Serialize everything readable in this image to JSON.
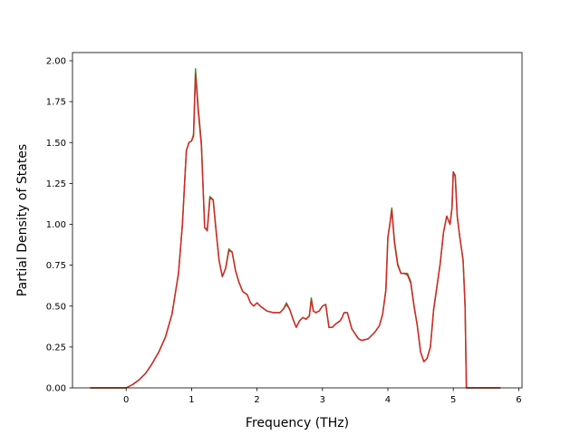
{
  "chart_data": {
    "type": "line",
    "xlabel": "Frequency (THz)",
    "ylabel": "Partial Density of States",
    "xlim": [
      -0.82,
      6.05
    ],
    "ylim": [
      0.0,
      2.05
    ],
    "xticks": [
      "0",
      "1",
      "2",
      "3",
      "4",
      "5",
      "6"
    ],
    "yticks": [
      "0.00",
      "0.25",
      "0.50",
      "0.75",
      "1.00",
      "1.25",
      "1.50",
      "1.75",
      "2.00"
    ],
    "grid": false,
    "series": [
      {
        "color": "#2ca02c",
        "x": [
          -0.55,
          0.0,
          0.1,
          0.2,
          0.3,
          0.4,
          0.5,
          0.6,
          0.7,
          0.8,
          0.86,
          0.92,
          0.96,
          1.0,
          1.03,
          1.06,
          1.1,
          1.15,
          1.2,
          1.24,
          1.28,
          1.33,
          1.37,
          1.42,
          1.47,
          1.52,
          1.57,
          1.62,
          1.67,
          1.72,
          1.78,
          1.85,
          1.9,
          1.95,
          2.0,
          2.05,
          2.15,
          2.25,
          2.35,
          2.4,
          2.45,
          2.5,
          2.55,
          2.6,
          2.65,
          2.7,
          2.75,
          2.8,
          2.83,
          2.86,
          2.9,
          2.95,
          3.0,
          3.05,
          3.1,
          3.15,
          3.2,
          3.27,
          3.3,
          3.33,
          3.38,
          3.45,
          3.5,
          3.55,
          3.6,
          3.7,
          3.8,
          3.87,
          3.92,
          3.97,
          4.0,
          4.03,
          4.06,
          4.1,
          4.15,
          4.2,
          4.25,
          4.3,
          4.35,
          4.4,
          4.45,
          4.5,
          4.55,
          4.6,
          4.65,
          4.7,
          4.75,
          4.8,
          4.85,
          4.9,
          4.95,
          4.98,
          5.0,
          5.03,
          5.06,
          5.1,
          5.15,
          5.18,
          5.2,
          5.25,
          5.5,
          5.72
        ],
        "y": [
          0.0,
          0.0,
          0.02,
          0.05,
          0.09,
          0.15,
          0.22,
          0.31,
          0.45,
          0.7,
          1.0,
          1.45,
          1.5,
          1.51,
          1.55,
          1.95,
          1.72,
          1.5,
          0.98,
          0.97,
          1.17,
          1.15,
          0.98,
          0.78,
          0.68,
          0.73,
          0.85,
          0.83,
          0.72,
          0.65,
          0.59,
          0.57,
          0.52,
          0.5,
          0.52,
          0.5,
          0.47,
          0.46,
          0.46,
          0.48,
          0.52,
          0.48,
          0.42,
          0.37,
          0.41,
          0.43,
          0.42,
          0.44,
          0.55,
          0.47,
          0.46,
          0.47,
          0.5,
          0.51,
          0.37,
          0.37,
          0.39,
          0.41,
          0.43,
          0.46,
          0.46,
          0.36,
          0.33,
          0.3,
          0.29,
          0.3,
          0.34,
          0.38,
          0.45,
          0.6,
          0.92,
          1.0,
          1.1,
          0.9,
          0.76,
          0.7,
          0.7,
          0.7,
          0.65,
          0.5,
          0.38,
          0.22,
          0.16,
          0.18,
          0.25,
          0.48,
          0.62,
          0.76,
          0.95,
          1.05,
          1.0,
          1.1,
          1.32,
          1.3,
          1.05,
          0.92,
          0.78,
          0.5,
          0.0,
          0.0,
          0.0,
          0.0
        ]
      },
      {
        "color": "#d62728",
        "x": [
          -0.55,
          0.0,
          0.1,
          0.2,
          0.3,
          0.4,
          0.5,
          0.6,
          0.7,
          0.8,
          0.86,
          0.92,
          0.96,
          1.0,
          1.03,
          1.06,
          1.1,
          1.15,
          1.2,
          1.24,
          1.28,
          1.33,
          1.37,
          1.42,
          1.47,
          1.52,
          1.57,
          1.62,
          1.67,
          1.72,
          1.78,
          1.85,
          1.9,
          1.95,
          2.0,
          2.05,
          2.15,
          2.25,
          2.35,
          2.4,
          2.45,
          2.5,
          2.55,
          2.6,
          2.65,
          2.7,
          2.75,
          2.8,
          2.83,
          2.86,
          2.9,
          2.95,
          3.0,
          3.05,
          3.1,
          3.15,
          3.2,
          3.27,
          3.3,
          3.33,
          3.38,
          3.45,
          3.5,
          3.55,
          3.6,
          3.7,
          3.8,
          3.87,
          3.92,
          3.97,
          4.0,
          4.03,
          4.06,
          4.1,
          4.15,
          4.2,
          4.25,
          4.3,
          4.35,
          4.4,
          4.45,
          4.5,
          4.55,
          4.6,
          4.65,
          4.7,
          4.75,
          4.8,
          4.85,
          4.9,
          4.95,
          4.98,
          5.0,
          5.03,
          5.06,
          5.1,
          5.15,
          5.18,
          5.2,
          5.25,
          5.5,
          5.72
        ],
        "y": [
          0.0,
          0.0,
          0.02,
          0.05,
          0.09,
          0.15,
          0.22,
          0.31,
          0.45,
          0.7,
          1.0,
          1.45,
          1.5,
          1.51,
          1.54,
          1.92,
          1.7,
          1.48,
          0.98,
          0.96,
          1.16,
          1.15,
          0.98,
          0.78,
          0.68,
          0.73,
          0.84,
          0.83,
          0.72,
          0.65,
          0.59,
          0.57,
          0.52,
          0.5,
          0.52,
          0.5,
          0.47,
          0.46,
          0.46,
          0.48,
          0.51,
          0.48,
          0.42,
          0.37,
          0.41,
          0.43,
          0.42,
          0.44,
          0.54,
          0.47,
          0.46,
          0.47,
          0.5,
          0.51,
          0.37,
          0.37,
          0.39,
          0.41,
          0.43,
          0.46,
          0.46,
          0.36,
          0.33,
          0.3,
          0.29,
          0.3,
          0.34,
          0.38,
          0.45,
          0.6,
          0.92,
          1.0,
          1.09,
          0.89,
          0.75,
          0.7,
          0.7,
          0.69,
          0.64,
          0.5,
          0.38,
          0.22,
          0.16,
          0.18,
          0.25,
          0.48,
          0.62,
          0.76,
          0.95,
          1.05,
          1.0,
          1.1,
          1.32,
          1.29,
          1.05,
          0.92,
          0.78,
          0.5,
          0.0,
          0.0,
          0.0,
          0.0
        ]
      }
    ]
  }
}
